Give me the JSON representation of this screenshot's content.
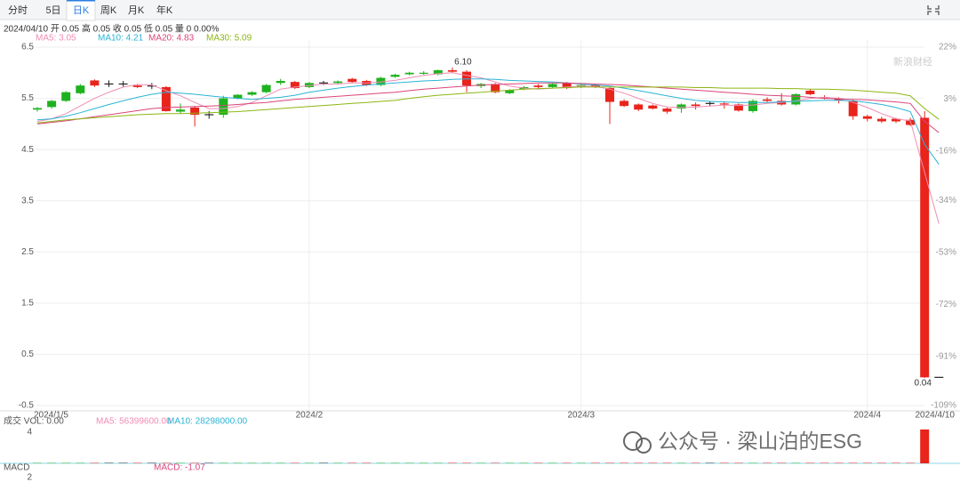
{
  "tabs": [
    "分时",
    "5日",
    "日K",
    "周K",
    "月K",
    "年K"
  ],
  "info": "2024/04/10 开 0.05 高 0.05 收 0.05 低 0.05 量 0 0.00%",
  "watermarks": [
    "新浪财经",
    "公众号 · 梁山泊的ESG"
  ],
  "chart_data": {
    "type": "candlestick",
    "up_color": "#1fb21f",
    "down_color": "#e8241b",
    "flat_color": "#222222",
    "categories": [
      "2024/1/5",
      null,
      null,
      null,
      null,
      null,
      null,
      null,
      null,
      null,
      null,
      null,
      null,
      null,
      null,
      null,
      null,
      null,
      null,
      "2024/2",
      null,
      null,
      null,
      null,
      null,
      null,
      null,
      null,
      null,
      null,
      null,
      null,
      null,
      null,
      null,
      null,
      null,
      null,
      "2024/3",
      null,
      null,
      null,
      null,
      null,
      null,
      null,
      null,
      null,
      null,
      null,
      null,
      null,
      null,
      null,
      null,
      null,
      null,
      null,
      "2024/4",
      null,
      null,
      null,
      null,
      "2024/4/10"
    ],
    "open": [
      5.28,
      5.33,
      5.45,
      5.6,
      5.85,
      5.78,
      5.78,
      5.75,
      5.74,
      5.72,
      5.24,
      5.32,
      5.18,
      5.18,
      5.5,
      5.57,
      5.62,
      5.8,
      5.82,
      5.72,
      5.8,
      5.8,
      5.88,
      5.84,
      5.76,
      5.92,
      5.97,
      5.98,
      5.97,
      6.05,
      6.02,
      5.74,
      5.78,
      5.6,
      5.68,
      5.75,
      5.72,
      5.8,
      5.72,
      5.76,
      5.7,
      5.45,
      5.38,
      5.36,
      5.3,
      5.3,
      5.38,
      5.4,
      5.4,
      5.38,
      5.25,
      5.48,
      5.45,
      5.38,
      5.65,
      5.52,
      5.5,
      5.45,
      5.15,
      5.1,
      5.1,
      5.08,
      5.12,
      0.05
    ],
    "high": [
      5.33,
      5.47,
      5.64,
      5.78,
      5.87,
      5.85,
      5.84,
      5.78,
      5.8,
      5.74,
      5.4,
      5.35,
      5.25,
      5.55,
      5.58,
      5.64,
      5.78,
      5.88,
      5.84,
      5.82,
      5.84,
      5.85,
      5.9,
      5.86,
      5.92,
      5.98,
      6.02,
      6.03,
      6.06,
      6.1,
      6.05,
      5.8,
      5.8,
      5.68,
      5.74,
      5.78,
      5.8,
      5.82,
      5.78,
      5.78,
      5.72,
      5.48,
      5.4,
      5.38,
      5.32,
      5.4,
      5.42,
      5.45,
      5.44,
      5.4,
      5.48,
      5.52,
      5.6,
      5.6,
      5.68,
      5.56,
      5.52,
      5.48,
      5.18,
      5.14,
      5.12,
      5.12,
      5.25,
      0.05
    ],
    "low": [
      5.24,
      5.3,
      5.43,
      5.58,
      5.72,
      5.72,
      5.72,
      5.7,
      5.68,
      5.24,
      5.2,
      4.95,
      5.1,
      5.12,
      5.48,
      5.55,
      5.6,
      5.76,
      5.68,
      5.7,
      5.76,
      5.78,
      5.8,
      5.74,
      5.74,
      5.9,
      5.95,
      5.96,
      5.95,
      6.0,
      5.62,
      5.7,
      5.6,
      5.58,
      5.66,
      5.7,
      5.7,
      5.68,
      5.7,
      5.7,
      5.0,
      5.33,
      5.25,
      5.28,
      5.2,
      5.22,
      5.28,
      5.35,
      5.3,
      5.24,
      5.22,
      5.42,
      5.36,
      5.36,
      5.56,
      5.48,
      5.4,
      5.08,
      5.05,
      5.02,
      5.02,
      4.96,
      0.04,
      0.05
    ],
    "close": [
      5.31,
      5.45,
      5.62,
      5.75,
      5.75,
      5.78,
      5.78,
      5.72,
      5.74,
      5.25,
      5.28,
      5.18,
      5.18,
      5.5,
      5.57,
      5.62,
      5.76,
      5.84,
      5.7,
      5.8,
      5.8,
      5.83,
      5.82,
      5.76,
      5.9,
      5.96,
      6.0,
      6.0,
      6.05,
      6.02,
      5.75,
      5.78,
      5.62,
      5.66,
      5.72,
      5.72,
      5.78,
      5.7,
      5.76,
      5.72,
      5.43,
      5.35,
      5.28,
      5.3,
      5.24,
      5.38,
      5.35,
      5.4,
      5.38,
      5.26,
      5.45,
      5.45,
      5.38,
      5.58,
      5.58,
      5.5,
      5.46,
      5.15,
      5.1,
      5.05,
      5.05,
      4.98,
      0.05,
      0.05
    ],
    "high_label": "6.10",
    "low_label": "0.04",
    "ylim": [
      -0.5,
      6.5
    ],
    "yticks": [
      6.5,
      5.5,
      4.5,
      3.5,
      2.5,
      1.5,
      0.5,
      -0.5
    ],
    "y2lim": [
      -109,
      22
    ],
    "y2ticks": [
      {
        "value": 22,
        "label": "22%"
      },
      {
        "value": 3,
        "label": "3%"
      },
      {
        "value": -16,
        "label": "-16%"
      },
      {
        "value": -34,
        "label": "-34%"
      },
      {
        "value": -53,
        "label": "-53%"
      },
      {
        "value": -72,
        "label": "-72%"
      },
      {
        "value": -91,
        "label": "-91%"
      },
      {
        "value": -109,
        "label": "-109%"
      }
    ],
    "grid": true,
    "ma": [
      {
        "name": "MA5: 3.05",
        "color": "#f08cb4",
        "values": [
          5.05,
          5.1,
          5.2,
          5.35,
          5.5,
          5.62,
          5.72,
          5.77,
          5.76,
          5.65,
          5.55,
          5.42,
          5.3,
          5.3,
          5.34,
          5.42,
          5.55,
          5.68,
          5.72,
          5.75,
          5.78,
          5.78,
          5.8,
          5.8,
          5.82,
          5.85,
          5.9,
          5.95,
          5.98,
          6.0,
          5.95,
          5.9,
          5.82,
          5.74,
          5.7,
          5.68,
          5.7,
          5.72,
          5.74,
          5.73,
          5.68,
          5.6,
          5.5,
          5.4,
          5.33,
          5.32,
          5.33,
          5.35,
          5.37,
          5.36,
          5.37,
          5.4,
          5.42,
          5.45,
          5.5,
          5.52,
          5.5,
          5.42,
          5.32,
          5.2,
          5.1,
          5.06,
          4.05,
          3.05
        ]
      },
      {
        "name": "MA10: 4.21",
        "color": "#2ab4d6",
        "values": [
          5.08,
          5.1,
          5.15,
          5.22,
          5.3,
          5.38,
          5.45,
          5.52,
          5.58,
          5.62,
          5.6,
          5.58,
          5.55,
          5.52,
          5.5,
          5.48,
          5.5,
          5.52,
          5.56,
          5.62,
          5.66,
          5.7,
          5.73,
          5.76,
          5.78,
          5.8,
          5.82,
          5.84,
          5.85,
          5.87,
          5.88,
          5.88,
          5.87,
          5.85,
          5.84,
          5.83,
          5.82,
          5.8,
          5.78,
          5.76,
          5.74,
          5.7,
          5.65,
          5.6,
          5.55,
          5.5,
          5.46,
          5.44,
          5.43,
          5.42,
          5.42,
          5.42,
          5.43,
          5.44,
          5.45,
          5.46,
          5.46,
          5.45,
          5.42,
          5.38,
          5.32,
          5.24,
          4.6,
          4.21
        ]
      },
      {
        "name": "MA20: 4.83",
        "color": "#d9457a",
        "values": [
          5.0,
          5.03,
          5.06,
          5.1,
          5.14,
          5.18,
          5.22,
          5.26,
          5.3,
          5.32,
          5.33,
          5.34,
          5.35,
          5.36,
          5.38,
          5.4,
          5.42,
          5.45,
          5.48,
          5.5,
          5.52,
          5.54,
          5.56,
          5.58,
          5.6,
          5.62,
          5.65,
          5.68,
          5.7,
          5.72,
          5.74,
          5.76,
          5.77,
          5.78,
          5.79,
          5.8,
          5.8,
          5.8,
          5.79,
          5.78,
          5.77,
          5.76,
          5.74,
          5.72,
          5.7,
          5.68,
          5.66,
          5.64,
          5.62,
          5.6,
          5.58,
          5.56,
          5.55,
          5.54,
          5.52,
          5.5,
          5.49,
          5.48,
          5.47,
          5.45,
          5.43,
          5.4,
          5.05,
          4.83
        ]
      },
      {
        "name": "MA30: 5.09",
        "color": "#8db614",
        "values": [
          5.02,
          5.05,
          5.08,
          5.1,
          5.12,
          5.14,
          5.16,
          5.18,
          5.19,
          5.2,
          5.2,
          5.21,
          5.22,
          5.23,
          5.24,
          5.26,
          5.28,
          5.3,
          5.32,
          5.34,
          5.36,
          5.38,
          5.4,
          5.42,
          5.44,
          5.46,
          5.5,
          5.53,
          5.56,
          5.58,
          5.6,
          5.62,
          5.64,
          5.66,
          5.68,
          5.69,
          5.7,
          5.71,
          5.72,
          5.72,
          5.72,
          5.72,
          5.72,
          5.72,
          5.72,
          5.72,
          5.71,
          5.71,
          5.7,
          5.7,
          5.7,
          5.7,
          5.69,
          5.69,
          5.68,
          5.68,
          5.67,
          5.66,
          5.64,
          5.62,
          5.6,
          5.55,
          5.3,
          5.09
        ]
      }
    ],
    "volume": {
      "title": "成交 VOL: 0.00",
      "legend": [
        "MA5: 56399600.00",
        "MA10: 28298000.00"
      ],
      "legend_colors": [
        "#f08cb4",
        "#2ab4d6"
      ],
      "ylim": [
        0,
        4.2
      ],
      "yticks": [
        4
      ],
      "values": [
        0.05,
        0.05,
        0.05,
        0.05,
        0.05,
        0.05,
        0.05,
        0.05,
        0.05,
        0.05,
        0.05,
        0.05,
        0.05,
        0.05,
        0.05,
        0.05,
        0.05,
        0.05,
        0.05,
        0.05,
        0.05,
        0.05,
        0.05,
        0.05,
        0.05,
        0.05,
        0.05,
        0.05,
        0.05,
        0.05,
        0.05,
        0.05,
        0.05,
        0.05,
        0.05,
        0.05,
        0.05,
        0.05,
        0.05,
        0.05,
        0.05,
        0.05,
        0.05,
        0.05,
        0.05,
        0.05,
        0.05,
        0.05,
        0.05,
        0.05,
        0.05,
        0.05,
        0.05,
        0.05,
        0.05,
        0.05,
        0.05,
        0.05,
        0.05,
        0.05,
        0.05,
        0.05,
        4.1,
        0
      ]
    },
    "macd": {
      "title": "MACD",
      "macd_label": "MACD: -1.07",
      "ytick_label": "2"
    }
  }
}
